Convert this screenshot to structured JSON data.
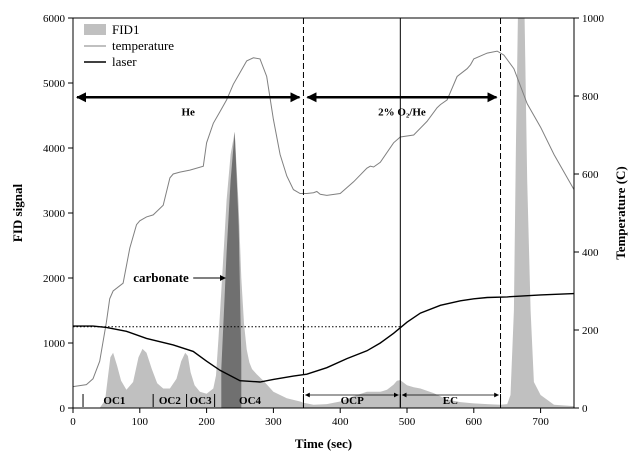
{
  "chart_data": {
    "type": "line",
    "x": {
      "label": "Time (sec)",
      "range": [
        0,
        750
      ],
      "ticks": [
        0,
        100,
        200,
        300,
        400,
        500,
        600,
        700
      ]
    },
    "y_left": {
      "label": "FID signal",
      "range": [
        0,
        6000
      ],
      "ticks": [
        0,
        1000,
        2000,
        3000,
        4000,
        5000,
        6000
      ]
    },
    "y_right": {
      "label": "Temperature (C)",
      "range": [
        0,
        1000
      ],
      "ticks": [
        0,
        200,
        400,
        600,
        800,
        1000
      ]
    },
    "legend": {
      "placement": "top-left",
      "items": [
        {
          "label": "FID1",
          "style": "area",
          "color": "#c0c0c0"
        },
        {
          "label": "temperature",
          "style": "line",
          "color": "#808080"
        },
        {
          "label": "laser",
          "style": "line",
          "color": "#000000"
        }
      ]
    },
    "series": [
      {
        "name": "FID1",
        "axis": "left",
        "style": "area",
        "color": "#c0c0c0",
        "x": [
          0,
          40,
          48,
          52,
          56,
          60,
          66,
          72,
          80,
          90,
          98,
          104,
          110,
          118,
          126,
          135,
          145,
          155,
          162,
          168,
          172,
          176,
          182,
          190,
          200,
          210,
          214,
          218,
          222,
          226,
          230,
          236,
          242,
          248,
          252,
          256,
          260,
          264,
          268,
          275,
          285,
          300,
          320,
          340,
          345,
          360,
          380,
          400,
          420,
          440,
          460,
          470,
          480,
          485,
          490,
          500,
          510,
          520,
          540,
          560,
          580,
          600,
          620,
          640,
          650,
          655,
          660,
          663,
          666,
          670,
          676,
          680,
          685,
          690,
          700,
          720,
          750
        ],
        "y": [
          0,
          0,
          120,
          450,
          780,
          850,
          650,
          420,
          280,
          400,
          780,
          910,
          850,
          600,
          380,
          300,
          300,
          450,
          720,
          850,
          800,
          550,
          350,
          250,
          220,
          300,
          500,
          1100,
          1800,
          2500,
          3200,
          3900,
          4250,
          3100,
          2000,
          1300,
          900,
          700,
          600,
          520,
          420,
          250,
          150,
          100,
          80,
          50,
          60,
          100,
          180,
          250,
          250,
          280,
          360,
          420,
          430,
          350,
          320,
          300,
          230,
          130,
          90,
          70,
          60,
          50,
          60,
          200,
          1500,
          4000,
          6000,
          6000,
          6000,
          3500,
          1500,
          400,
          200,
          50,
          30
        ]
      },
      {
        "name": "FID1 carbonate",
        "axis": "left",
        "style": "area",
        "color": "#707070",
        "x": [
          222,
          226,
          230,
          236,
          242,
          248,
          252
        ],
        "y": [
          600,
          1500,
          2400,
          3500,
          4250,
          2800,
          770
        ]
      },
      {
        "name": "temperature",
        "axis": "right",
        "style": "line",
        "color": "#808080",
        "x": [
          0,
          20,
          30,
          40,
          50,
          55,
          60,
          75,
          85,
          95,
          100,
          110,
          120,
          135,
          145,
          150,
          160,
          175,
          195,
          200,
          210,
          220,
          230,
          240,
          250,
          260,
          270,
          280,
          290,
          300,
          310,
          320,
          330,
          340,
          350,
          360,
          365,
          370,
          380,
          400,
          420,
          440,
          445,
          450,
          460,
          480,
          490,
          510,
          530,
          545,
          550,
          560,
          575,
          590,
          595,
          600,
          620,
          635,
          645,
          660,
          680,
          700,
          720,
          750
        ],
        "y": [
          55,
          60,
          75,
          120,
          220,
          280,
          300,
          320,
          410,
          470,
          480,
          490,
          495,
          520,
          590,
          600,
          605,
          610,
          620,
          680,
          730,
          760,
          790,
          830,
          860,
          890,
          898,
          895,
          850,
          740,
          650,
          595,
          560,
          550,
          550,
          552,
          555,
          548,
          545,
          550,
          580,
          615,
          620,
          618,
          630,
          680,
          695,
          700,
          735,
          770,
          778,
          790,
          850,
          870,
          880,
          895,
          910,
          915,
          905,
          870,
          780,
          720,
          650,
          560
        ]
      },
      {
        "name": "laser",
        "axis": "left",
        "style": "line",
        "color": "#000000",
        "x": [
          0,
          30,
          50,
          80,
          110,
          150,
          180,
          200,
          220,
          250,
          280,
          300,
          330,
          350,
          380,
          410,
          440,
          460,
          480,
          500,
          520,
          550,
          580,
          600,
          620,
          650,
          700,
          750
        ],
        "y": [
          1260,
          1260,
          1240,
          1180,
          1070,
          970,
          870,
          720,
          580,
          420,
          400,
          440,
          490,
          520,
          620,
          760,
          880,
          1000,
          1150,
          1320,
          1460,
          1580,
          1650,
          1680,
          1700,
          1710,
          1740,
          1760
        ]
      },
      {
        "name": "laser baseline",
        "axis": "left",
        "style": "dotted",
        "color": "#000000",
        "x": [
          0,
          490
        ],
        "y": [
          1250,
          1250
        ]
      }
    ],
    "vlines": [
      {
        "x": 345,
        "style": "dashed"
      },
      {
        "x": 640,
        "style": "dashed"
      },
      {
        "x": 490,
        "style": "solid"
      }
    ],
    "ranges": [
      {
        "x1": 0,
        "x2": 345,
        "y": 4780,
        "label": "He",
        "style": "thick"
      },
      {
        "x1": 345,
        "x2": 640,
        "y": 4780,
        "label": "2% O₂/He",
        "style": "thick"
      },
      {
        "x1": 345,
        "x2": 490,
        "y": 200,
        "label": "",
        "style": "thin"
      },
      {
        "x1": 490,
        "x2": 640,
        "y": 200,
        "label": "",
        "style": "thin"
      }
    ],
    "segments": {
      "y": 0,
      "dividers": [
        15,
        120,
        170,
        212,
        345,
        490,
        640
      ],
      "labels": [
        {
          "text": "OC1",
          "x": 62
        },
        {
          "text": "OC2",
          "x": 145
        },
        {
          "text": "OC3",
          "x": 191
        },
        {
          "text": "OC4",
          "x": 265
        },
        {
          "text": "OCP",
          "x": 418
        },
        {
          "text": "EC",
          "x": 565
        }
      ]
    },
    "annotations": [
      {
        "text": "carbonate",
        "x": 150,
        "y": 2000,
        "arrow_to": [
          228,
          2000
        ]
      }
    ]
  }
}
